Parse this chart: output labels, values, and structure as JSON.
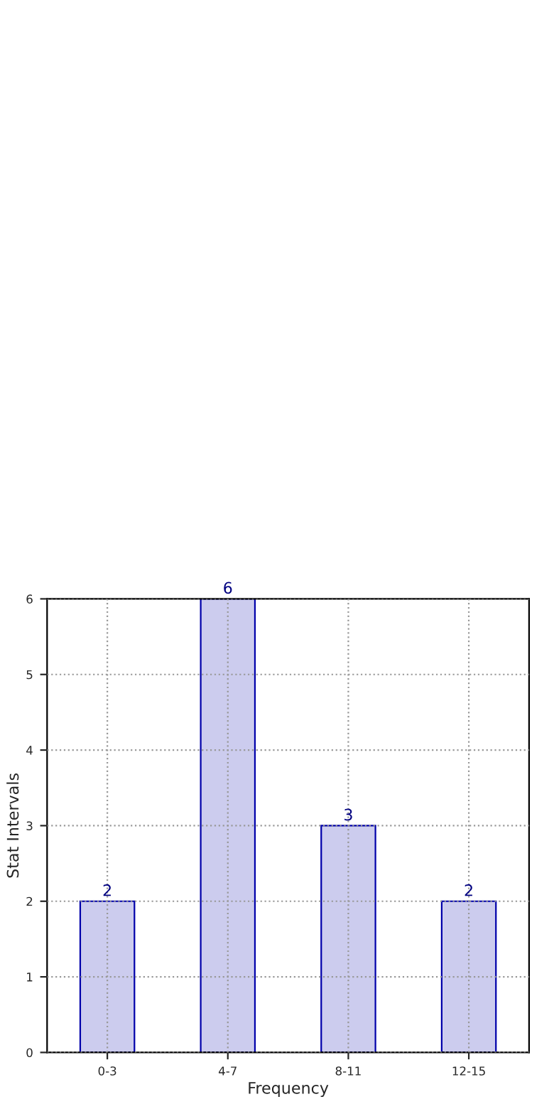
{
  "chart_data": {
    "type": "bar",
    "xlabel": "Frequency",
    "ylabel": "Stat Intervals",
    "categories": [
      "0-3",
      "4-7",
      "8-11",
      "12-15"
    ],
    "values": [
      2,
      6,
      3,
      2
    ],
    "color": "#ccccee",
    "ylim": [
      0,
      6
    ],
    "yticks": [
      0,
      1,
      2,
      3,
      4,
      5,
      6
    ],
    "grid": true,
    "data_labels": true
  }
}
